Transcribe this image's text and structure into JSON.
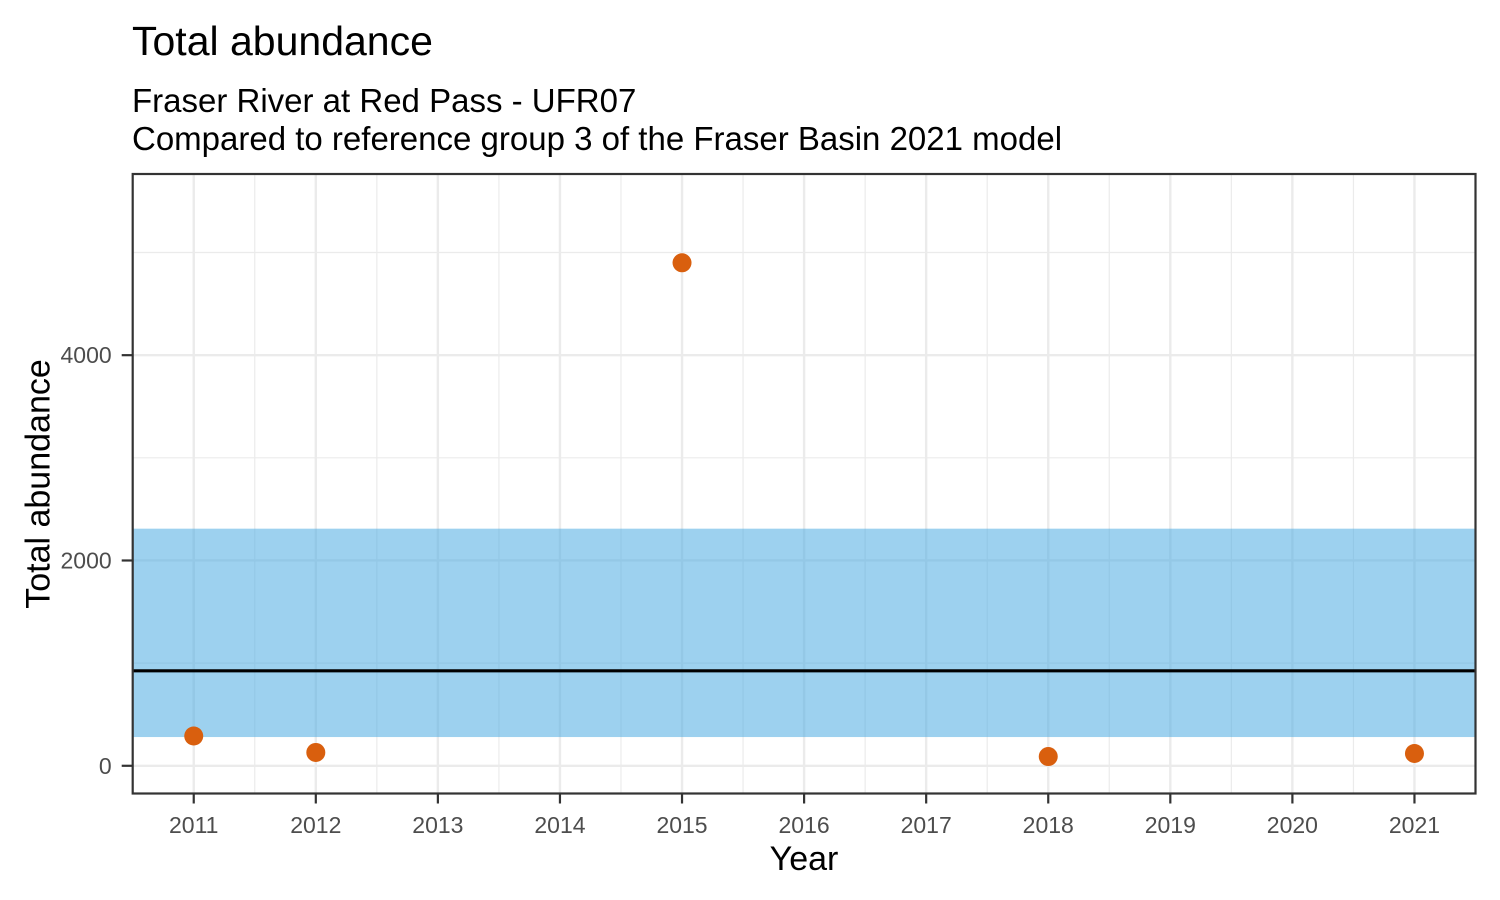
{
  "chart_data": {
    "type": "scatter",
    "title": "Total abundance",
    "subtitle_line1": "Fraser River at Red Pass - UFR07",
    "subtitle_line2": "Compared to reference group 3 of the Fraser Basin 2021 model",
    "xlabel": "Year",
    "ylabel": "Total abundance",
    "xlim": [
      2010.5,
      2021.5
    ],
    "ylim": [
      -270,
      5765
    ],
    "x_ticks": [
      2011,
      2012,
      2013,
      2014,
      2015,
      2016,
      2017,
      2018,
      2019,
      2020,
      2021
    ],
    "y_ticks": [
      0,
      2000,
      4000
    ],
    "y_minor_ticks": [
      1000,
      3000,
      5000
    ],
    "grid": "on",
    "legend": "none",
    "points": {
      "x": [
        2011,
        2012,
        2015,
        2018,
        2021
      ],
      "y": [
        290,
        130,
        4900,
        90,
        120
      ]
    },
    "reference_band": {
      "lower": 280,
      "upper": 2310
    },
    "reference_line": {
      "value": 925
    },
    "colors": {
      "point": "#D95F0E",
      "band_fill": "rgba(77,172,226,0.55)",
      "band_apparent": "#9ED3F0",
      "reference_line": "#000000",
      "grid_line": "#EBEBEB",
      "axis_text": "#4D4D4D",
      "panel_border": "#333333",
      "title_text": "#000000"
    }
  }
}
